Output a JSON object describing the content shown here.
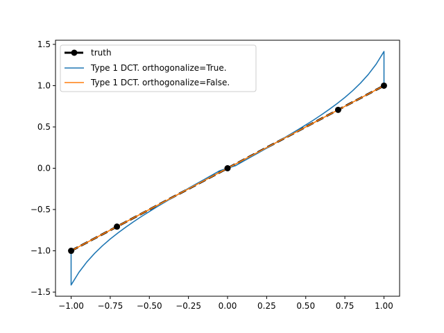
{
  "chart_data": {
    "type": "line",
    "title": "",
    "xlabel": "",
    "ylabel": "",
    "xlim": [
      -1.1,
      1.1
    ],
    "ylim": [
      -1.55,
      1.55
    ],
    "grid": false,
    "legend_placement": "top-left",
    "x_ticks": [
      -1.0,
      -0.75,
      -0.5,
      -0.25,
      0.0,
      0.25,
      0.5,
      0.75,
      1.0
    ],
    "x_tick_labels": [
      "−1.00",
      "−0.75",
      "−0.50",
      "−0.25",
      "0.00",
      "0.25",
      "0.50",
      "0.75",
      "1.00"
    ],
    "y_ticks": [
      -1.5,
      -1.0,
      -0.5,
      0.0,
      0.5,
      1.0,
      1.5
    ],
    "y_tick_labels": [
      "−1.5",
      "−1.0",
      "−0.5",
      "0.0",
      "0.5",
      "1.0",
      "1.5"
    ],
    "series": [
      {
        "name": "truth",
        "color": "#000000",
        "style": "dashed-with-markers",
        "x": [
          -1.0,
          -0.7071,
          0.0,
          0.7071,
          1.0
        ],
        "y": [
          -1.0,
          -0.7071,
          0.0,
          0.7071,
          1.0
        ]
      },
      {
        "name": "Type 1 DCT. orthogonalize=True.",
        "color": "#1f77b4",
        "style": "solid",
        "x": [
          -1.0,
          -1.0,
          -0.95,
          -0.9,
          -0.85,
          -0.8,
          -0.75,
          -0.7,
          -0.65,
          -0.6,
          -0.55,
          -0.5,
          -0.45,
          -0.4,
          -0.35,
          -0.3,
          -0.25,
          -0.2,
          -0.15,
          -0.1,
          -0.05,
          0.0,
          0.05,
          0.1,
          0.15,
          0.2,
          0.25,
          0.3,
          0.35,
          0.4,
          0.45,
          0.5,
          0.55,
          0.6,
          0.65,
          0.7,
          0.75,
          0.8,
          0.85,
          0.9,
          0.95,
          1.0,
          1.0
        ],
        "y": [
          -1.0,
          -1.414,
          -1.26,
          -1.136,
          -1.031,
          -0.939,
          -0.857,
          -0.782,
          -0.712,
          -0.647,
          -0.584,
          -0.524,
          -0.466,
          -0.41,
          -0.354,
          -0.299,
          -0.244,
          -0.19,
          -0.137,
          -0.083,
          -0.03,
          0.0,
          0.03,
          0.083,
          0.137,
          0.19,
          0.244,
          0.299,
          0.354,
          0.41,
          0.466,
          0.524,
          0.584,
          0.647,
          0.712,
          0.782,
          0.857,
          0.939,
          1.031,
          1.136,
          1.26,
          1.414,
          1.0
        ]
      },
      {
        "name": "Type 1 DCT. orthogonalize=False.",
        "color": "#ff7f0e",
        "style": "solid",
        "x": [
          -1.0,
          -0.5,
          0.0,
          0.5,
          1.0
        ],
        "y": [
          -1.0,
          -0.5,
          0.0,
          0.5,
          1.0
        ]
      }
    ]
  }
}
